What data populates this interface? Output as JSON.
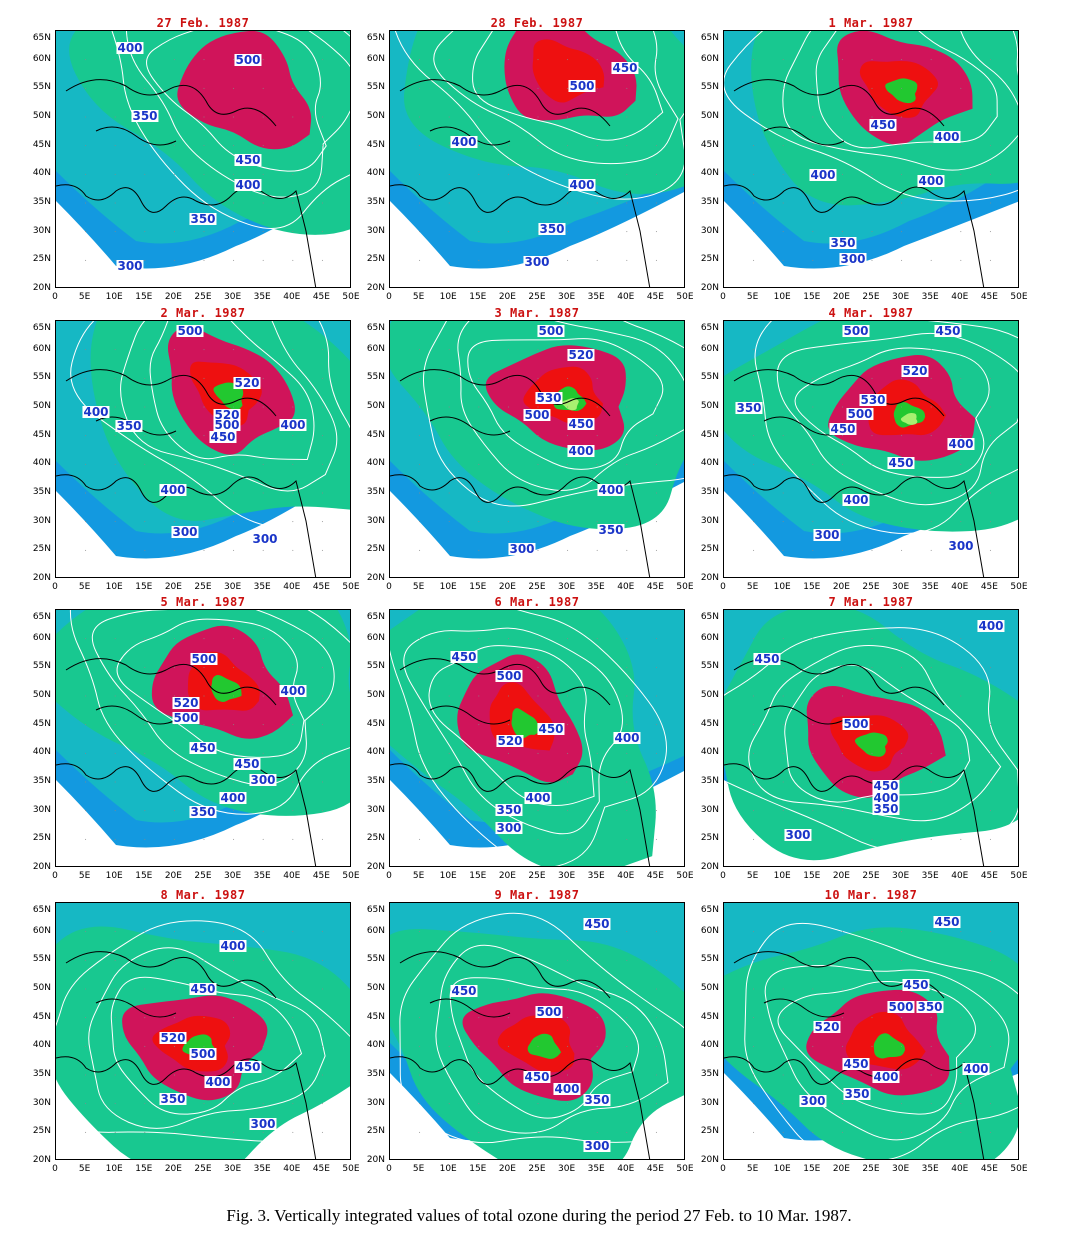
{
  "panels": [
    {
      "title": "27 Feb. 1987",
      "contour_labels": [
        "400",
        "500",
        "350",
        "450",
        "400",
        "350",
        "300"
      ]
    },
    {
      "title": "28 Feb. 1987",
      "contour_labels": [
        "450",
        "500",
        "400",
        "400",
        "350",
        "300"
      ]
    },
    {
      "title": "1 Mar. 1987",
      "contour_labels": [
        "450",
        "400",
        "400",
        "400",
        "350",
        "300"
      ]
    },
    {
      "title": "2 Mar. 1987",
      "contour_labels": [
        "500",
        "520",
        "520",
        "500",
        "450",
        "400",
        "350",
        "400",
        "400",
        "300",
        "300"
      ]
    },
    {
      "title": "3 Mar. 1987",
      "contour_labels": [
        "500",
        "520",
        "530",
        "500",
        "450",
        "400",
        "400",
        "350",
        "300"
      ]
    },
    {
      "title": "4 Mar. 1987",
      "contour_labels": [
        "500",
        "450",
        "520",
        "530",
        "500",
        "450",
        "400",
        "350",
        "450",
        "400",
        "300",
        "300"
      ]
    },
    {
      "title": "5 Mar. 1987",
      "contour_labels": [
        "500",
        "520",
        "500",
        "400",
        "450",
        "450",
        "300",
        "400",
        "350"
      ]
    },
    {
      "title": "6 Mar. 1987",
      "contour_labels": [
        "450",
        "500",
        "450",
        "400",
        "520",
        "400",
        "350",
        "300"
      ]
    },
    {
      "title": "7 Mar. 1987",
      "contour_labels": [
        "400",
        "450",
        "500",
        "450",
        "400",
        "350",
        "300"
      ]
    },
    {
      "title": "8 Mar. 1987",
      "contour_labels": [
        "400",
        "450",
        "520",
        "500",
        "450",
        "400",
        "350",
        "300"
      ]
    },
    {
      "title": "9 Mar. 1987",
      "contour_labels": [
        "450",
        "450",
        "500",
        "450",
        "400",
        "350",
        "300"
      ]
    },
    {
      "title": "10 Mar. 1987",
      "contour_labels": [
        "450",
        "450",
        "500",
        "350",
        "520",
        "450",
        "400",
        "400",
        "300",
        "350"
      ]
    }
  ],
  "y_axis_ticks": [
    "65N",
    "60N",
    "55N",
    "50N",
    "45N",
    "40N",
    "35N",
    "30N",
    "25N",
    "20N"
  ],
  "x_axis_ticks": [
    "0",
    "5E",
    "10E",
    "15E",
    "20E",
    "25E",
    "30E",
    "35E",
    "40E",
    "45E",
    "50E"
  ],
  "colors": {
    "lt300": "#ffffff",
    "c300": "#1399e0",
    "c350": "#16b8c4",
    "c400": "#18c890",
    "c450": "#d0145a",
    "c500": "#ee1010",
    "c520": "#22c830",
    "c530": "#a8f070",
    "title": "#cc1111",
    "label": "#1a35c8"
  },
  "caption": "Fig. 3. Vertically integrated values of total ozone during the period 27 Feb. to 10 Mar. 1987."
}
